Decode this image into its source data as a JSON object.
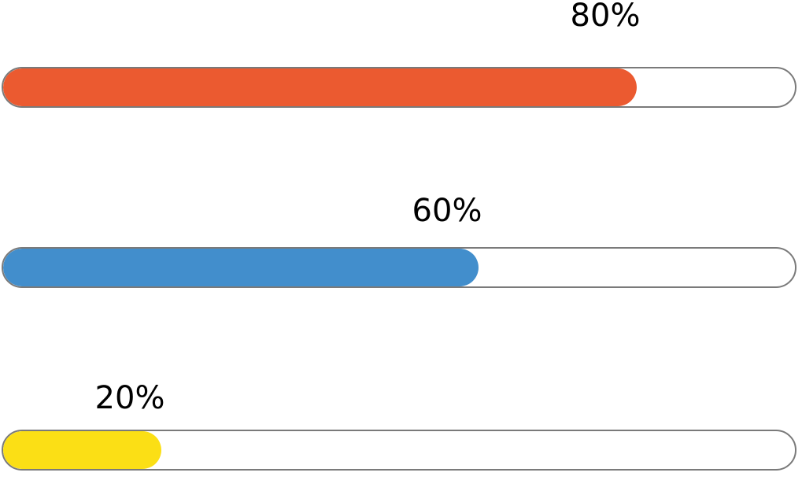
{
  "progress_bars": [
    {
      "label": "80%",
      "value": 0.8,
      "color": "#eb5a30"
    },
    {
      "label": "60%",
      "value": 0.6,
      "color": "#428ecc"
    },
    {
      "label": "20%",
      "value": 0.2,
      "color": "#fbdf15"
    }
  ]
}
